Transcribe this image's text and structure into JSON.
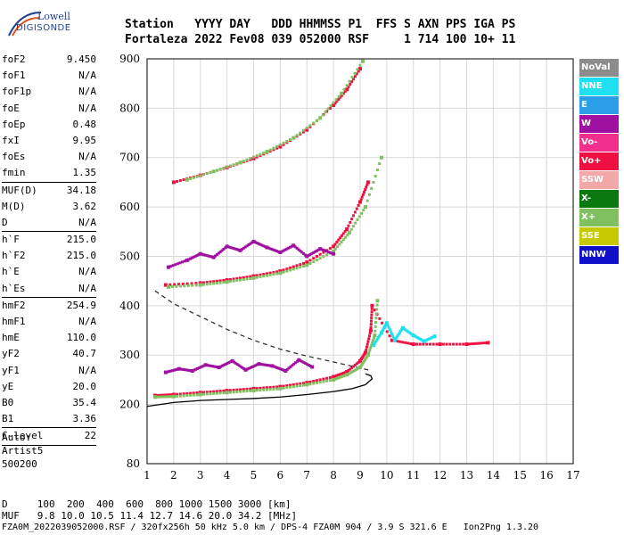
{
  "logo": {
    "line1": "Lowell",
    "line2": "DIGISONDE"
  },
  "header": {
    "labels": "Station   YYYY DAY   DDD HHMMSS P1  FFS S AXN PPS IGA PS",
    "values": "Fortaleza 2022 Fev08 039 052000 RSF     1 714 100 10+ 11"
  },
  "params": [
    {
      "label": "foF2",
      "value": "9.450"
    },
    {
      "label": "foF1",
      "value": "N/A"
    },
    {
      "label": "foF1p",
      "value": "N/A"
    },
    {
      "label": "foE",
      "value": "N/A"
    },
    {
      "label": "foEp",
      "value": "0.48"
    },
    {
      "label": "fxI",
      "value": "9.95"
    },
    {
      "label": "foEs",
      "value": "N/A"
    },
    {
      "label": "fmin",
      "value": "1.35"
    },
    {
      "sep": true
    },
    {
      "label": "MUF(D)",
      "value": "34.18"
    },
    {
      "label": "M(D)",
      "value": "3.62"
    },
    {
      "label": "D",
      "value": "N/A"
    },
    {
      "sep": true
    },
    {
      "label": "h`F",
      "value": "215.0"
    },
    {
      "label": "h`F2",
      "value": "215.0"
    },
    {
      "label": "h`E",
      "value": "N/A"
    },
    {
      "label": "h`Es",
      "value": "N/A"
    },
    {
      "sep": true
    },
    {
      "label": "hmF2",
      "value": "254.9"
    },
    {
      "label": "hmF1",
      "value": "N/A"
    },
    {
      "label": "hmE",
      "value": "110.0"
    },
    {
      "label": "yF2",
      "value": "40.7"
    },
    {
      "label": "yF1",
      "value": "N/A"
    },
    {
      "label": "yE",
      "value": "20.0"
    },
    {
      "label": "B0",
      "value": "35.4"
    },
    {
      "label": "B1",
      "value": "3.36"
    },
    {
      "sep": true
    },
    {
      "label": "C-level",
      "value": "22"
    },
    {
      "sep": true
    }
  ],
  "auto": [
    "Auto:",
    "Artist5",
    "500200"
  ],
  "legend": [
    {
      "label": "NoVal",
      "color": "#8c8c8c"
    },
    {
      "label": "NNE",
      "color": "#1ee0f0"
    },
    {
      "label": "E",
      "color": "#2a9fe8"
    },
    {
      "label": "W",
      "color": "#a010a0"
    },
    {
      "label": "Vo-",
      "color": "#f0308c"
    },
    {
      "label": "Vo+",
      "color": "#ee1040"
    },
    {
      "label": "SSW",
      "color": "#f2a8a8"
    },
    {
      "label": "X-",
      "color": "#0a7a10"
    },
    {
      "label": "X+",
      "color": "#80c060"
    },
    {
      "label": "SSE",
      "color": "#c8c800"
    },
    {
      "label": "NNW",
      "color": "#1010c8"
    }
  ],
  "bottom": {
    "line1": "D     100  200  400  600  800 1000 1500 3000 [km]",
    "line2": "MUF   9.8 10.0 10.5 11.4 12.7 14.6 20.0 34.2 [MHz]",
    "line3": "FZA0M_2022039052000.RSF / 320fx256h 50 kHz 5.0 km / DPS-4 FZA0M 904 / 3.9 S 321.6 E   Ion2Png 1.3.20"
  },
  "chart_data": {
    "type": "scatter",
    "xlim": [
      1,
      17
    ],
    "ylim": [
      80,
      900
    ],
    "x_ticks": [
      1,
      2,
      3,
      4,
      5,
      6,
      7,
      8,
      9,
      10,
      11,
      12,
      13,
      14,
      15,
      16,
      17
    ],
    "y_ticks": [
      80,
      200,
      300,
      400,
      500,
      600,
      700,
      800,
      900
    ],
    "grid": true,
    "series": [
      {
        "name": "Vo+",
        "color": "#ee1040",
        "x": [
          1.3,
          2,
          3,
          4,
          5,
          6,
          7,
          8,
          8.5,
          9,
          9.2,
          9.4,
          9.45,
          10.2,
          11,
          12,
          13,
          13.8
        ],
        "y": [
          218,
          220,
          224,
          228,
          232,
          236,
          244,
          256,
          266,
          288,
          305,
          350,
          400,
          330,
          322,
          322,
          322,
          325
        ]
      },
      {
        "name": "X+",
        "color": "#80c060",
        "x": [
          1.3,
          2,
          3,
          4,
          5,
          6,
          7,
          8,
          8.5,
          9,
          9.3,
          9.55,
          9.65
        ],
        "y": [
          215,
          216,
          220,
          224,
          228,
          232,
          240,
          250,
          260,
          275,
          300,
          340,
          410
        ]
      },
      {
        "name": "Vo+",
        "color": "#ee1040",
        "x": [
          1.7,
          3,
          4,
          5,
          6,
          7,
          8,
          8.5,
          9,
          9.3
        ],
        "y": [
          442,
          446,
          452,
          460,
          470,
          488,
          520,
          555,
          610,
          650
        ]
      },
      {
        "name": "X+",
        "color": "#80c060",
        "x": [
          1.8,
          3,
          4,
          5,
          6,
          7,
          8,
          8.6,
          9.2,
          9.8
        ],
        "y": [
          438,
          442,
          448,
          456,
          466,
          482,
          510,
          548,
          600,
          700
        ]
      },
      {
        "name": "Vo+",
        "color": "#ee1040",
        "x": [
          2,
          3,
          4,
          5,
          6,
          7,
          8,
          8.5,
          9
        ],
        "y": [
          650,
          664,
          680,
          698,
          722,
          756,
          806,
          838,
          880
        ]
      },
      {
        "name": "X+",
        "color": "#80c060",
        "x": [
          2.5,
          3.5,
          4.5,
          5.5,
          6.5,
          7.5,
          8.3,
          9.1
        ],
        "y": [
          655,
          672,
          690,
          712,
          740,
          780,
          830,
          895
        ]
      },
      {
        "name": "W",
        "color": "#a010a0",
        "x": [
          1.7,
          2.2,
          2.7,
          3.2,
          3.7,
          4.2,
          4.7,
          5.2,
          5.7,
          6.2,
          6.7,
          7.2
        ],
        "y": [
          265,
          272,
          268,
          280,
          275,
          288,
          270,
          282,
          278,
          268,
          290,
          276
        ]
      },
      {
        "name": "W",
        "color": "#a010a0",
        "x": [
          1.8,
          2.5,
          3,
          3.5,
          4,
          4.5,
          5,
          5.5,
          6,
          6.5,
          7,
          7.5,
          8
        ],
        "y": [
          478,
          492,
          505,
          498,
          520,
          512,
          530,
          518,
          508,
          522,
          500,
          515,
          505
        ]
      },
      {
        "name": "NNE",
        "color": "#1ee0f0",
        "x": [
          9.5,
          9.8,
          10,
          10.3,
          10.6,
          11,
          11.4,
          11.8
        ],
        "y": [
          320,
          345,
          365,
          330,
          355,
          340,
          328,
          338
        ]
      }
    ],
    "sim_curve": {
      "name": "",
      "color": "#000000",
      "x": [
        1,
        2,
        3,
        4,
        5,
        6,
        7,
        8,
        8.7,
        9.2,
        9.45,
        9.4,
        9.2
      ],
      "y": [
        196,
        204,
        208,
        210,
        212,
        215,
        220,
        226,
        232,
        240,
        252,
        258,
        262
      ]
    },
    "dashed_curve": {
      "name": "",
      "color": "#333333",
      "x": [
        1.3,
        2,
        3,
        4,
        5,
        6,
        7,
        8,
        8.8,
        9.3
      ],
      "y": [
        430,
        404,
        378,
        352,
        330,
        312,
        298,
        286,
        276,
        270
      ]
    }
  }
}
